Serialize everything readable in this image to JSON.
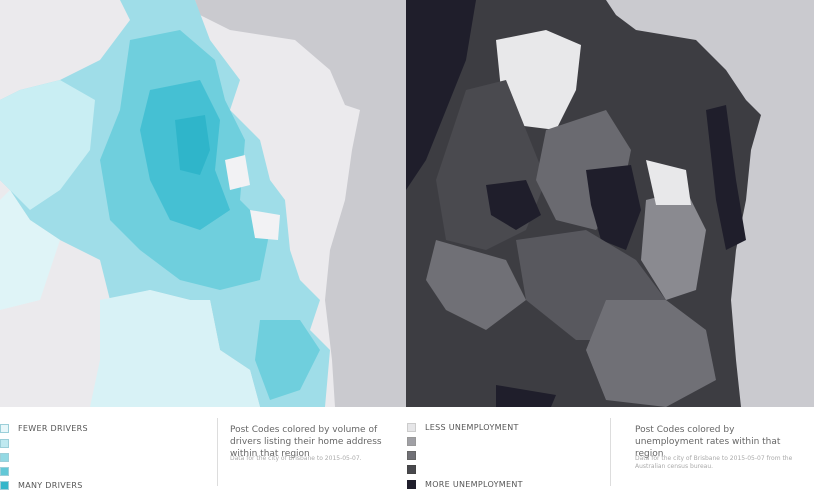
{
  "left": {
    "legend": {
      "low": "FEWER DRIVERS",
      "high": "MANY DRIVERS"
    },
    "description": "Post Codes colored by volume of drivers listing their home address within that region",
    "note": "Data for the city of Brisbane to 2015-05-07."
  },
  "right": {
    "legend": {
      "low": "LESS UNEMPLOYMENT",
      "high": "MORE UNEMPLOYMENT"
    },
    "description": "Post Codes colored by unemployment rates within that region",
    "note": "Data for the city of Brisbane to 2015-05-07 from the Australian census bureau."
  }
}
